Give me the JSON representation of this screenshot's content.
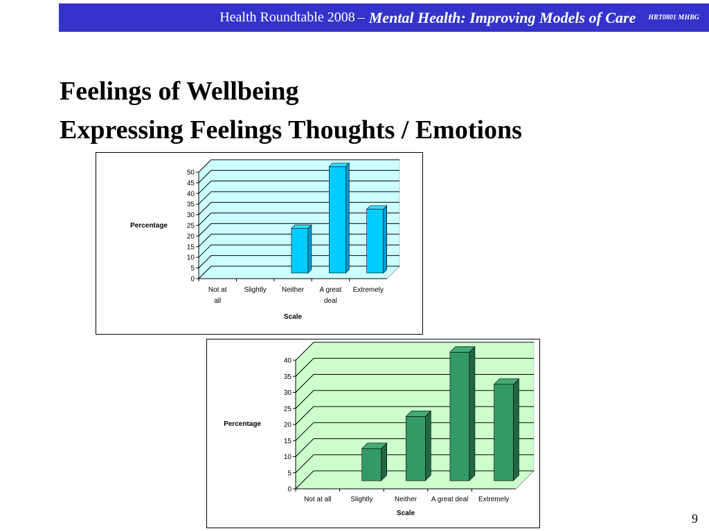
{
  "header": {
    "lead": "Health Roundtable  2008",
    "dash": "–",
    "subject": "Mental Health:  Improving Models of Care",
    "code": "HRT0801 MHBG"
  },
  "slide": {
    "title_line1": "Feelings of Wellbeing",
    "title_line2": "Expressing Feelings Thoughts / Emotions",
    "page_number": "9"
  },
  "chart_data": [
    {
      "type": "bar",
      "categories": [
        "Not at all",
        "Slightly",
        "Neither",
        "A great deal",
        "Extremely"
      ],
      "values": [
        0,
        0,
        21,
        50,
        30
      ],
      "xlabel": "Scale",
      "ylabel": "Percentage",
      "ylim": [
        0,
        50
      ],
      "yticks": [
        0,
        5,
        10,
        15,
        20,
        25,
        30,
        35,
        40,
        45,
        50
      ],
      "grid": true,
      "colors": {
        "floor": "#ccffff",
        "bar_front": "#00ccff",
        "bar_side": "#0099cc",
        "bar_top": "#33ddff",
        "grid": "#000000"
      }
    },
    {
      "type": "bar",
      "categories": [
        "Not at all",
        "Slightly",
        "Neither",
        "A great deal",
        "Extremely"
      ],
      "values": [
        0,
        10,
        20,
        40,
        30
      ],
      "xlabel": "Scale",
      "ylabel": "Percentage",
      "ylim": [
        0,
        40
      ],
      "yticks": [
        0,
        5,
        10,
        15,
        20,
        25,
        30,
        35,
        40
      ],
      "grid": true,
      "colors": {
        "floor": "#ccffcc",
        "bar_front": "#339966",
        "bar_side": "#226644",
        "bar_top": "#44aa77",
        "grid": "#000000"
      }
    }
  ]
}
